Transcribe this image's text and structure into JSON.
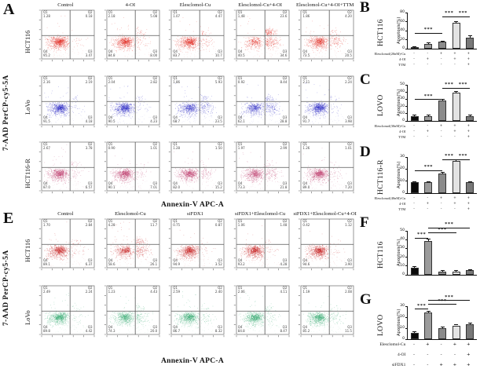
{
  "panel_a": {
    "letter": "A",
    "y_axis_label": "7-AAD PerCP-cy5-5A",
    "x_axis_label": "Annexin-V APC-A",
    "columns": [
      "Control",
      "4-OI",
      "Elesclomol-Cu",
      "Elesclomol-Cu+4-OI",
      "Elesclomol-Cu+4-OI+TTM"
    ],
    "rows": [
      {
        "label": "HCT116",
        "color": "#e0251c",
        "plots": [
          {
            "q1": "1.28",
            "q2": "0.18",
            "q3": "3.47",
            "q4": "95.2"
          },
          {
            "q1": "2.18",
            "q2": "5.08",
            "q3": "8.00",
            "q4": "84.8"
          },
          {
            "q1": "1.07",
            "q2": "4.47",
            "q3": "10.7",
            "q4": "83.7"
          },
          {
            "q1": "1.48",
            "q2": "23.6",
            "q3": "34.6",
            "q4": "40.5"
          },
          {
            "q1": "1.86",
            "q2": "4.20",
            "q3": "20.5",
            "q4": "73.5"
          }
        ]
      },
      {
        "label": "LoVo",
        "color": "#2a28c4",
        "plots": [
          {
            "q1": "2.16",
            "q2": "2.19",
            "q3": "4.18",
            "q4": "91.5"
          },
          {
            "q1": "2.04",
            "q2": "2.82",
            "q3": "4.23",
            "q4": "90.5"
          },
          {
            "q1": "1.86",
            "q2": "5.93",
            "q3": "23.5",
            "q4": "68.7"
          },
          {
            "q1": "0.92",
            "q2": "8.44",
            "q3": "28.8",
            "q4": "62.1"
          },
          {
            "q1": "2.11",
            "q2": "2.24",
            "q3": "3.98",
            "q4": "91.7"
          }
        ]
      },
      {
        "label": "HCT116-R",
        "color": "#bc3a6a",
        "plots": [
          {
            "q1": "2.67",
            "q2": "3.78",
            "q3": "6.57",
            "q4": "87.0"
          },
          {
            "q1": "0.90",
            "q2": "1.01",
            "q3": "7.01",
            "q4": "90.1"
          },
          {
            "q1": "1.28",
            "q2": "1.50",
            "q3": "15.2",
            "q4": "82.0"
          },
          {
            "q1": "1.97",
            "q2": "2.99",
            "q3": "21.8",
            "q4": "73.3"
          },
          {
            "q1": "1.26",
            "q2": "1.01",
            "q3": "7.20",
            "q4": "89.0"
          }
        ]
      }
    ]
  },
  "panel_e": {
    "letter": "E",
    "y_axis_label": "7-AAD PerCP-cy5-5A",
    "x_axis_label": "Annexin-V APC-A",
    "columns": [
      "Control",
      "Elesclomol-Cu",
      "siFDX1",
      "siFDX1+Elesclomol-Cu",
      "siFDX1+Elesclomol-Cu+4-OI"
    ],
    "rows": [
      {
        "label": "HCT116",
        "color": "#c52222",
        "plots": [
          {
            "q1": "1.70",
            "q2": "2.84",
            "q3": "6.37",
            "q4": "89.1"
          },
          {
            "q1": "4.28",
            "q2": "11.7",
            "q3": "26.1",
            "q4": "58.6"
          },
          {
            "q1": "0.75",
            "q2": "0.87",
            "q3": "3.52",
            "q4": "94.9"
          },
          {
            "q1": "1.06",
            "q2": "1.48",
            "q3": "4.28",
            "q4": "93.2"
          },
          {
            "q1": "0.42",
            "q2": "1.12",
            "q3": "3.90",
            "q4": "94.6"
          }
        ]
      },
      {
        "label": "LoVo",
        "color": "#34a86e",
        "plots": [
          {
            "q1": "2.49",
            "q2": "2.24",
            "q3": "4.42",
            "q4": "89.8"
          },
          {
            "q1": "1.23",
            "q2": "4.43",
            "q3": "20.0",
            "q4": "74.3"
          },
          {
            "q1": "2.59",
            "q2": "2.40",
            "q3": "8.32",
            "q4": "86.7"
          },
          {
            "q1": "2.06",
            "q2": "4.11",
            "q3": "8.47",
            "q4": "84.8"
          },
          {
            "q1": "1.19",
            "q2": "2.08",
            "q3": "11.5",
            "q4": "85.2"
          }
        ]
      }
    ]
  },
  "chart_data": [
    {
      "panel": "B",
      "type": "bar",
      "cell_line": "HCT116",
      "ylabel": "Apoptosis(%)",
      "ylim": [
        0,
        80
      ],
      "yticks": [
        0,
        20,
        40,
        60,
        80
      ],
      "categories": [
        "Control",
        "4-OI",
        "Elesclomol-Cu",
        "Elesclomol-Cu+4-OI",
        "Elesclomol-Cu+4-OI+TTM"
      ],
      "values": [
        3,
        11,
        15,
        57,
        25
      ],
      "errors": [
        0.8,
        1.2,
        1.5,
        2.5,
        4
      ],
      "bar_colors": [
        "#0a0a0a",
        "#9b9b9b",
        "#8b8b8b",
        "#e3e3e3",
        "#787878"
      ],
      "significance": [
        {
          "from": 1,
          "to": 3,
          "label": "***",
          "y": 0.56
        },
        {
          "from": 3,
          "to": 4,
          "label": "***",
          "y": 0.1
        },
        {
          "from": 4,
          "to": 5,
          "label": "***",
          "y": 0.1
        }
      ],
      "conditions": [
        {
          "label": "Elesclomol(20nM)-Cu",
          "values": [
            "-",
            "-",
            "+",
            "+",
            "+"
          ]
        },
        {
          "label": "4-OI",
          "values": [
            "-",
            "+",
            "-",
            "+",
            "+"
          ]
        },
        {
          "label": "TTM",
          "values": [
            "-",
            "-",
            "-",
            "-",
            "+"
          ]
        }
      ]
    },
    {
      "panel": "C",
      "type": "bar",
      "cell_line": "LOVO",
      "ylabel": "Apoptosis(%)",
      "ylim": [
        0,
        50
      ],
      "yticks": [
        0,
        10,
        20,
        30,
        40,
        50
      ],
      "categories": [
        "Control",
        "4-OI",
        "Elesclomol-Cu",
        "Elesclomol-Cu+4-OI",
        "Elesclomol-Cu+4-OI+TTM"
      ],
      "values": [
        7,
        7,
        28,
        39,
        7
      ],
      "errors": [
        0.8,
        0.7,
        1.5,
        1.5,
        0.8
      ],
      "bar_colors": [
        "#0a0a0a",
        "#9b9b9b",
        "#8b8b8b",
        "#e3e3e3",
        "#787878"
      ],
      "significance": [
        {
          "from": 1,
          "to": 3,
          "label": "***",
          "y": 0.4
        },
        {
          "from": 3,
          "to": 4,
          "label": "***",
          "y": 0.08
        },
        {
          "from": 4,
          "to": 5,
          "label": "***",
          "y": 0.08
        }
      ],
      "conditions": [
        {
          "label": "Elesclomol(30nM)-Cu",
          "values": [
            "-",
            "-",
            "+",
            "+",
            "+"
          ]
        },
        {
          "label": "4-OI",
          "values": [
            "-",
            "+",
            "-",
            "+",
            "+"
          ]
        },
        {
          "label": "TTM",
          "values": [
            "-",
            "-",
            "-",
            "-",
            "+"
          ]
        }
      ]
    },
    {
      "panel": "D",
      "type": "bar",
      "cell_line": "HCT116-R",
      "ylabel": "Apoptosis(%)",
      "ylim": [
        0,
        30
      ],
      "yticks": [
        0,
        10,
        20,
        30
      ],
      "categories": [
        "Control",
        "4-OI",
        "Elesclomol-Cu",
        "Elesclomol-Cu+4-OI",
        "Elesclomol-Cu+4-OI+TTM"
      ],
      "values": [
        9,
        9,
        16,
        27,
        9
      ],
      "errors": [
        0.5,
        0.5,
        1,
        1,
        0.5
      ],
      "bar_colors": [
        "#0a0a0a",
        "#9b9b9b",
        "#8b8b8b",
        "#e3e3e3",
        "#787878"
      ],
      "significance": [
        {
          "from": 1,
          "to": 3,
          "label": "***",
          "y": 0.36
        },
        {
          "from": 3,
          "to": 4,
          "label": "***",
          "y": 0.06
        },
        {
          "from": 4,
          "to": 5,
          "label": "***",
          "y": 0.06
        }
      ],
      "conditions": [
        {
          "label": "Elesclomol(40nM)-Cu",
          "values": [
            "-",
            "-",
            "+",
            "+",
            "+"
          ]
        },
        {
          "label": "4-OI",
          "values": [
            "-",
            "+",
            "-",
            "+",
            "+"
          ]
        },
        {
          "label": "TTM",
          "values": [
            "-",
            "-",
            "-",
            "-",
            "+"
          ]
        }
      ]
    },
    {
      "panel": "F",
      "type": "bar",
      "cell_line": "HCT116",
      "ylabel": "Apoptosis(%)",
      "ylim": [
        0,
        50
      ],
      "yticks": [
        0,
        10,
        20,
        30,
        40,
        50
      ],
      "categories": [
        "Control",
        "Elesclomol-Cu",
        "siFDX1",
        "siFDX1+Elesclomol-Cu",
        "siFDX1+Elesclomol-Cu+4-OI"
      ],
      "values": [
        8,
        38,
        4,
        4,
        5
      ],
      "errors": [
        1,
        2.5,
        0.5,
        0.5,
        0.6
      ],
      "bar_colors": [
        "#0a0a0a",
        "#9b9b9b",
        "#8b8b8b",
        "#e3e3e3",
        "#787878"
      ],
      "significance": [
        {
          "from": 1,
          "to": 2,
          "label": "***",
          "y": 0.16
        },
        {
          "from": 2,
          "to": 4,
          "label": "***",
          "y": 0.04
        },
        {
          "from": 2,
          "to": 5,
          "label": "***",
          "y": -0.08
        }
      ],
      "conditions": []
    },
    {
      "panel": "G",
      "type": "bar",
      "cell_line": "LOVO",
      "ylabel": "Apoptosis(%)",
      "ylim": [
        0,
        30
      ],
      "yticks": [
        0,
        10,
        20,
        30
      ],
      "categories": [
        "Control",
        "Elesclomol-Cu",
        "siFDX1",
        "siFDX1+Elesclomol-Cu",
        "siFDX1+Elesclomol-Cu+4-OI"
      ],
      "values": [
        6,
        24,
        10,
        12.5,
        13.5
      ],
      "errors": [
        0.8,
        1.5,
        1,
        0.8,
        0.8
      ],
      "bar_colors": [
        "#0a0a0a",
        "#9b9b9b",
        "#8b8b8b",
        "#e3e3e3",
        "#787878"
      ],
      "significance": [
        {
          "from": 1,
          "to": 2,
          "label": "***",
          "y": 0.08
        },
        {
          "from": 2,
          "to": 4,
          "label": "***",
          "y": -0.06
        },
        {
          "from": 2,
          "to": 5,
          "label": "***",
          "y": -0.18
        }
      ],
      "conditions": [
        {
          "label": "Elesclomol-Cu",
          "values": [
            "-",
            "+",
            "-",
            "+",
            "+"
          ]
        },
        {
          "label": "4-OI",
          "values": [
            "-",
            "-",
            "-",
            "-",
            "+"
          ]
        },
        {
          "label": "siFDX1",
          "values": [
            "-",
            "-",
            "+",
            "+",
            "+"
          ]
        }
      ],
      "conditions_wide": true
    }
  ]
}
